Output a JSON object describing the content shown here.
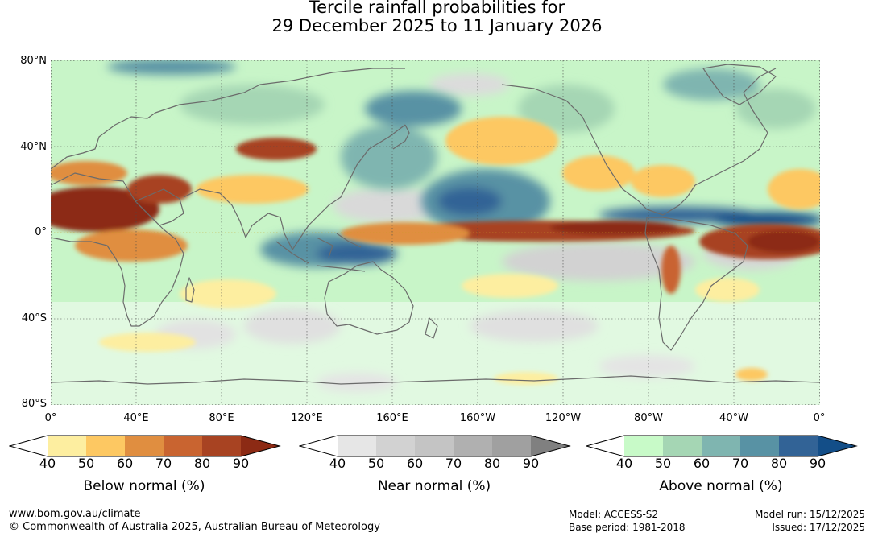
{
  "title": {
    "line1": "Tercile rainfall probabilities for",
    "line2": "29 December 2025 to 11 January 2026"
  },
  "map": {
    "lat_labels": [
      "80°N",
      "40°N",
      "0°",
      "40°S",
      "80°S"
    ],
    "lon_labels": [
      "0°",
      "40°E",
      "80°E",
      "120°E",
      "160°E",
      "160°W",
      "120°W",
      "80°W",
      "40°W",
      "0°"
    ],
    "base_color": "#c8f5c8"
  },
  "legends": [
    {
      "caption": "Below normal (%)",
      "ticks": [
        "40",
        "50",
        "60",
        "70",
        "80",
        "90"
      ],
      "colors": [
        "#ffffff",
        "#fdeea0",
        "#fdc862",
        "#e08e40",
        "#c96430",
        "#a84322",
        "#8c2a14"
      ]
    },
    {
      "caption": "Near normal (%)",
      "ticks": [
        "40",
        "50",
        "60",
        "70",
        "80",
        "90"
      ],
      "colors": [
        "#ffffff",
        "#e6e6e6",
        "#d2d2d2",
        "#c4c4c4",
        "#b0b0b0",
        "#a0a0a0",
        "#808080"
      ]
    },
    {
      "caption": "Above normal (%)",
      "ticks": [
        "40",
        "50",
        "60",
        "70",
        "80",
        "90"
      ],
      "colors": [
        "#ffffff",
        "#c8fac8",
        "#a5d6b4",
        "#7fb5b0",
        "#5892a4",
        "#326396",
        "#134e88"
      ]
    }
  ],
  "footer": {
    "url": "www.bom.gov.au/climate",
    "copyright": "© Commonwealth of Australia 2025, Australian Bureau of Meteorology",
    "model": "Model: ACCESS-S2",
    "base_period": "Base period: 1981-2018",
    "model_run": "Model run: 15/12/2025",
    "issued": "Issued: 17/12/2025"
  }
}
